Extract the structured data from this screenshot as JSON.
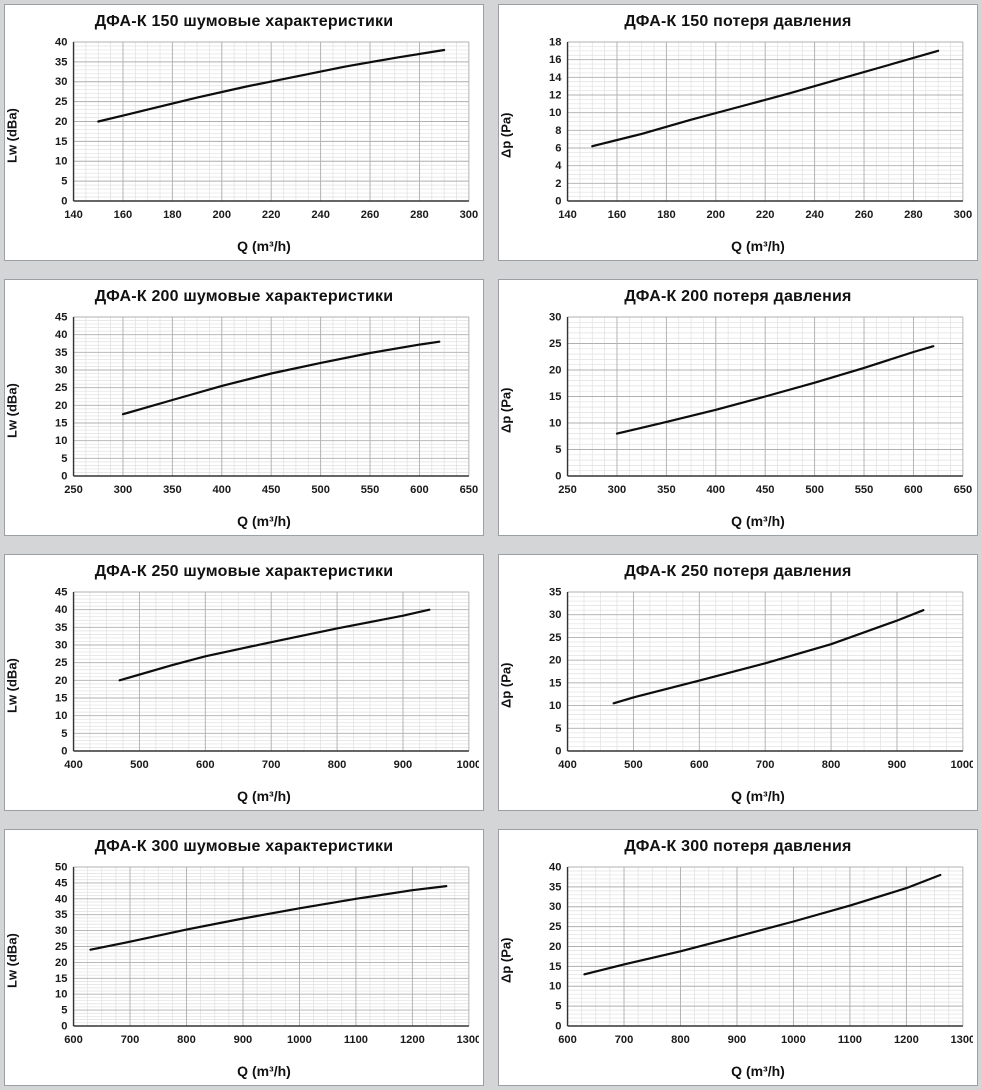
{
  "page": {
    "background": "#d3d5d6",
    "panel_background": "#ffffff",
    "panel_border": "#9aa0a3",
    "grid_minor_color": "#e0e0e0",
    "grid_major_color": "#b0b0b0",
    "axis_color": "#333333"
  },
  "chart_data": [
    {
      "type": "line",
      "title": "ДФА-К 150 шумовые характеристики",
      "xlabel": "Q (m³/h)",
      "ylabel": "Lw (dBa)",
      "xlim": [
        140,
        300
      ],
      "xstep": 20,
      "xminor": 5,
      "ylim": [
        0,
        40
      ],
      "ystep": 5,
      "yminor": 1,
      "x": [
        150,
        170,
        190,
        210,
        230,
        250,
        270,
        290
      ],
      "y": [
        20,
        23,
        26,
        28.8,
        31.3,
        33.8,
        36,
        38
      ],
      "line_color": "#0d0d0d"
    },
    {
      "type": "line",
      "title": "ДФА-К 150 потеря давления",
      "xlabel": "Q (m³/h)",
      "ylabel": "Δp (Pa)",
      "xlim": [
        140,
        300
      ],
      "xstep": 20,
      "xminor": 5,
      "ylim": [
        0,
        18
      ],
      "ystep": 2,
      "yminor": 0.5,
      "x": [
        150,
        170,
        190,
        210,
        230,
        250,
        270,
        290
      ],
      "y": [
        6.2,
        7.6,
        9.2,
        10.7,
        12.2,
        13.8,
        15.4,
        17
      ],
      "line_color": "#0d0d0d"
    },
    {
      "type": "line",
      "title": "ДФА-К 200 шумовые характеристики",
      "xlabel": "Q (m³/h)",
      "ylabel": "Lw (dBa)",
      "xlim": [
        250,
        650
      ],
      "xstep": 50,
      "xminor": 12.5,
      "ylim": [
        0,
        45
      ],
      "ystep": 5,
      "yminor": 1,
      "x": [
        300,
        350,
        400,
        450,
        500,
        550,
        600,
        620
      ],
      "y": [
        17.5,
        21.5,
        25.5,
        29,
        32,
        34.8,
        37.2,
        38
      ],
      "line_color": "#0d0d0d"
    },
    {
      "type": "line",
      "title": "ДФА-К 200 потеря давления",
      "xlabel": "Q (m³/h)",
      "ylabel": "Δp (Pa)",
      "xlim": [
        250,
        650
      ],
      "xstep": 50,
      "xminor": 12.5,
      "ylim": [
        0,
        30
      ],
      "ystep": 5,
      "yminor": 1,
      "x": [
        300,
        350,
        400,
        450,
        500,
        550,
        600,
        620
      ],
      "y": [
        8,
        10.2,
        12.5,
        15,
        17.6,
        20.4,
        23.4,
        24.5
      ],
      "line_color": "#0d0d0d"
    },
    {
      "type": "line",
      "title": "ДФА-К 250 шумовые характеристики",
      "xlabel": "Q (m³/h)",
      "ylabel": "Lw (dBa)",
      "xlim": [
        400,
        1000
      ],
      "xstep": 100,
      "xminor": 25,
      "ylim": [
        0,
        45
      ],
      "ystep": 5,
      "yminor": 1,
      "x": [
        470,
        550,
        600,
        700,
        800,
        900,
        940
      ],
      "y": [
        20,
        24.3,
        26.8,
        30.8,
        34.7,
        38.3,
        40
      ],
      "line_color": "#0d0d0d"
    },
    {
      "type": "line",
      "title": "ДФА-К 250 потеря давления",
      "xlabel": "Q (m³/h)",
      "ylabel": "Δp (Pa)",
      "xlim": [
        400,
        1000
      ],
      "xstep": 100,
      "xminor": 25,
      "ylim": [
        0,
        35
      ],
      "ystep": 5,
      "yminor": 1,
      "x": [
        470,
        500,
        600,
        700,
        800,
        900,
        940
      ],
      "y": [
        10.5,
        11.8,
        15.5,
        19.3,
        23.5,
        28.7,
        31
      ],
      "line_color": "#0d0d0d"
    },
    {
      "type": "line",
      "title": "ДФА-К 300 шумовые характеристики",
      "xlabel": "Q (m³/h)",
      "ylabel": "Lw (dBa)",
      "xlim": [
        600,
        1300
      ],
      "xstep": 100,
      "xminor": 25,
      "ylim": [
        0,
        50
      ],
      "ystep": 5,
      "yminor": 1,
      "x": [
        630,
        700,
        800,
        900,
        1000,
        1100,
        1200,
        1260
      ],
      "y": [
        24,
        26.5,
        30.3,
        33.8,
        37,
        40,
        42.7,
        44
      ],
      "line_color": "#0d0d0d"
    },
    {
      "type": "line",
      "title": "ДФА-К 300 потеря давления",
      "xlabel": "Q (m³/h)",
      "ylabel": "Δp (Pa)",
      "xlim": [
        600,
        1300
      ],
      "xstep": 100,
      "xminor": 25,
      "ylim": [
        0,
        40
      ],
      "ystep": 5,
      "yminor": 1,
      "x": [
        630,
        700,
        800,
        900,
        1000,
        1100,
        1200,
        1260
      ],
      "y": [
        13,
        15.5,
        18.8,
        22.5,
        26.3,
        30.3,
        34.7,
        38
      ],
      "line_color": "#0d0d0d"
    }
  ]
}
